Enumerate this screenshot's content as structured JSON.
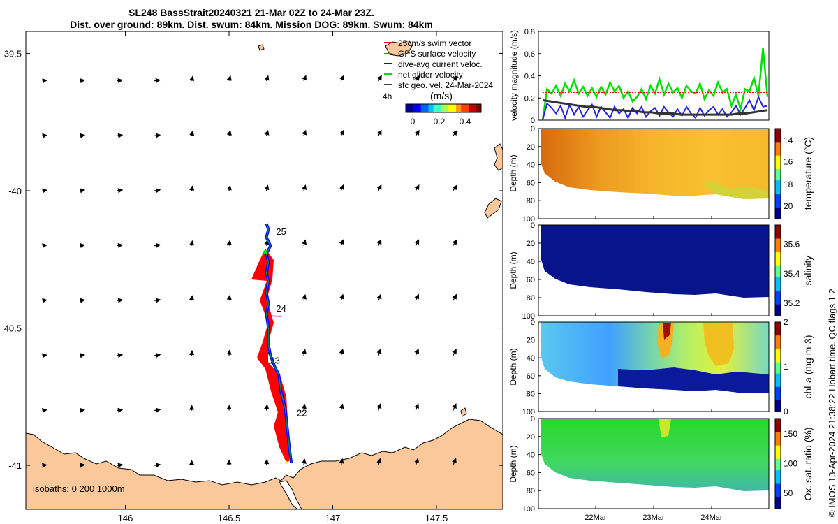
{
  "title": {
    "line1": "SL248 BassStrait20240321 21-Mar 02Z to 24-Mar 23Z.",
    "line2": "Dist. over ground: 89km. Dist. swum: 84km. Mission DOG: 89km. Swum: 84km"
  },
  "copyright": "© IMOS 13-Apr-2024 21:38:22 Hobart time. QC flags 1  2",
  "colors": {
    "land": "#fbc89b",
    "track": "#ff0000",
    "dive_avg": "#0000ff",
    "net_glider": "#00e000",
    "surface_vel": "#ff00ff",
    "geostrophic": "#000000"
  },
  "chart_data": [
    {
      "id": "map",
      "type": "scatter",
      "title": "",
      "xlabel": "",
      "ylabel": "",
      "xlim": [
        145.52,
        147.82
      ],
      "ylim": [
        -41.16,
        -39.42
      ],
      "x_ticks": [
        146,
        146.5,
        147,
        147.5
      ],
      "x_tick_labels": [
        "146",
        "146.5",
        "147",
        "147.5"
      ],
      "y_ticks": [
        -39.5,
        -40,
        -40.5,
        -41
      ],
      "y_tick_labels": [
        "39.5",
        "-40",
        "40.5",
        "-41"
      ],
      "isobaths_label": "isobaths: 0   200  1000m",
      "legend": [
        {
          "label": "25cm/s swim vector",
          "color": "#ff0000"
        },
        {
          "label": "GPS surface velocity",
          "color": "#ff00ff"
        },
        {
          "label": "dive-avg current veloc.",
          "color": "#0000ff"
        },
        {
          "label": "net glider velocity",
          "color": "#00e000"
        },
        {
          "label": "sfc geo. vel. 24-Mar-2024",
          "color": "#000000"
        }
      ],
      "legend_extra": "4h",
      "colorbar": {
        "label": "(m/s)",
        "ticks": [
          "0",
          "0.2",
          "0.4"
        ],
        "range": [
          0,
          0.5
        ]
      },
      "track": {
        "lon": [
          146.8,
          146.79,
          146.78,
          146.77,
          146.75,
          146.74,
          146.72,
          146.7,
          146.69,
          146.69,
          146.68,
          146.69,
          146.68,
          146.69,
          146.68,
          146.69,
          146.68,
          146.7,
          146.68,
          146.69,
          146.68
        ],
        "lat": [
          -40.99,
          -40.93,
          -40.86,
          -40.79,
          -40.73,
          -40.67,
          -40.64,
          -40.6,
          -40.56,
          -40.5,
          -40.45,
          -40.41,
          -40.37,
          -40.33,
          -40.3,
          -40.26,
          -40.23,
          -40.2,
          -40.17,
          -40.14,
          -40.12
        ]
      },
      "day_labels": [
        {
          "text": "25",
          "lon": 146.72,
          "lat": -40.15
        },
        {
          "text": "24",
          "lon": 146.72,
          "lat": -40.43
        },
        {
          "text": "23",
          "lon": 146.69,
          "lat": -40.62
        },
        {
          "text": "22",
          "lon": 146.82,
          "lat": -40.81
        }
      ],
      "geo_vectors": {
        "lons": [
          145.6,
          145.78,
          145.96,
          146.14,
          146.32,
          146.5,
          146.68,
          146.86,
          147.04,
          147.22,
          147.4,
          147.58
        ],
        "lats": [
          -39.6,
          -39.8,
          -40.0,
          -40.2,
          -40.4,
          -40.6,
          -40.8,
          -41.0
        ]
      }
    },
    {
      "id": "velocity",
      "type": "line",
      "xlabel": "",
      "ylabel": "velocity magnitude (m/s)",
      "ylim": [
        0,
        0.8
      ],
      "y_ticks": [
        "0",
        "0.2",
        "0.4",
        "0.6",
        "0.8"
      ],
      "series": [
        {
          "name": "net glider velocity",
          "color": "#00e000",
          "values": [
            0.0,
            0.28,
            0.24,
            0.31,
            0.22,
            0.33,
            0.26,
            0.36,
            0.24,
            0.3,
            0.22,
            0.29,
            0.21,
            0.3,
            0.23,
            0.34,
            0.26,
            0.31,
            0.2,
            0.26,
            0.17,
            0.21,
            0.28,
            0.19,
            0.31,
            0.24,
            0.37,
            0.23,
            0.33,
            0.25,
            0.29,
            0.2,
            0.31,
            0.26,
            0.24,
            0.33,
            0.19,
            0.27,
            0.22,
            0.34,
            0.25,
            0.28,
            0.13,
            0.23,
            0.1,
            0.28,
            0.26,
            0.38,
            0.22,
            0.65,
            0.21
          ]
        },
        {
          "name": "dive-avg current veloc.",
          "color": "#2222dd",
          "values": [
            0.0,
            0.15,
            0.11,
            0.06,
            0.13,
            0.02,
            0.14,
            0.05,
            0.12,
            0.03,
            0.09,
            0.14,
            0.03,
            0.12,
            0.07,
            0.02,
            0.12,
            0.06,
            0.1,
            0.02,
            0.11,
            0.06,
            0.12,
            0.03,
            0.08,
            0.11,
            0.04,
            0.12,
            0.07,
            0.03,
            0.1,
            0.04,
            0.12,
            0.06,
            0.02,
            0.11,
            0.04,
            0.09,
            0.12,
            0.05,
            0.1,
            0.03,
            0.07,
            0.13,
            0.05,
            0.11,
            0.18,
            0.09,
            0.21,
            0.12,
            0.13
          ]
        },
        {
          "name": "sfc geo. vel.",
          "color": "#333333",
          "values": [
            0.18,
            0.17,
            0.16,
            0.15,
            0.14,
            0.13,
            0.12,
            0.12,
            0.11,
            0.1,
            0.09,
            0.09,
            0.08,
            0.08,
            0.07,
            0.07,
            0.06,
            0.06,
            0.06,
            0.05,
            0.05,
            0.05,
            0.05,
            0.05,
            0.05,
            0.05,
            0.05,
            0.06,
            0.06,
            0.07,
            0.08,
            0.09
          ]
        },
        {
          "name": "25cm/s reference",
          "color": "#ff0000",
          "values": [
            0.25,
            0.25
          ]
        }
      ]
    },
    {
      "id": "temperature",
      "type": "heatmap",
      "ylabel": "Depth (m)",
      "ylim": [
        100,
        0
      ],
      "y_ticks": [
        "0",
        "20",
        "40",
        "60",
        "80",
        "100"
      ],
      "colorbar_label": "temperature (°C)",
      "colorbar_ticks": [
        "20",
        "18",
        "16",
        "14"
      ],
      "value_range": [
        13,
        21
      ]
    },
    {
      "id": "salinity",
      "type": "heatmap",
      "ylabel": "Depth (m)",
      "ylim": [
        100,
        0
      ],
      "y_ticks": [
        "0",
        "20",
        "40",
        "60",
        "80",
        "100"
      ],
      "colorbar_label": "salinity",
      "colorbar_ticks": [
        "35.6",
        "35.4",
        "35.2"
      ],
      "value_range": [
        35.15,
        35.8
      ]
    },
    {
      "id": "chla",
      "type": "heatmap",
      "ylabel": "Depth (m)",
      "ylim": [
        100,
        0
      ],
      "y_ticks": [
        "0",
        "20",
        "40",
        "60",
        "80",
        "100"
      ],
      "colorbar_label": "chl-a (mg m-3)",
      "colorbar_ticks": [
        "2",
        "1",
        "0"
      ],
      "value_range": [
        0,
        2
      ]
    },
    {
      "id": "oxygen",
      "type": "heatmap",
      "ylabel": "Depth (m)",
      "ylim": [
        100,
        0
      ],
      "y_ticks": [
        "0",
        "20",
        "40",
        "60",
        "80",
        "100"
      ],
      "colorbar_label": "Ox. sat. ratio (%)",
      "colorbar_ticks": [
        "150",
        "100",
        "50"
      ],
      "value_range": [
        25,
        175
      ],
      "x_ticks": [
        "22Mar",
        "23Mar",
        "24Mar"
      ]
    }
  ]
}
